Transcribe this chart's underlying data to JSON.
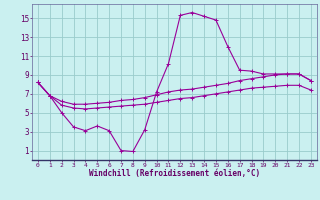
{
  "xlabel": "Windchill (Refroidissement éolien,°C)",
  "bg_color": "#caf0f0",
  "plot_bg_color": "#caf0f0",
  "grid_color": "#99cccc",
  "line_color": "#990099",
  "spine_color": "#666699",
  "tick_color": "#660066",
  "label_color": "#660066",
  "x": [
    0,
    1,
    2,
    3,
    4,
    5,
    6,
    7,
    8,
    9,
    10,
    11,
    12,
    13,
    14,
    15,
    16,
    17,
    18,
    19,
    20,
    21,
    22,
    23
  ],
  "y_main": [
    8.2,
    6.8,
    5.0,
    3.5,
    3.1,
    3.6,
    3.1,
    1.0,
    0.9,
    3.2,
    7.2,
    10.2,
    15.3,
    15.6,
    15.2,
    14.8,
    12.0,
    9.5,
    9.4,
    9.1,
    9.1,
    9.1,
    9.1,
    8.4
  ],
  "y_upper": [
    8.2,
    6.8,
    6.2,
    5.9,
    5.9,
    6.0,
    6.1,
    6.3,
    6.4,
    6.6,
    6.9,
    7.2,
    7.4,
    7.5,
    7.7,
    7.9,
    8.1,
    8.4,
    8.6,
    8.8,
    9.0,
    9.1,
    9.1,
    8.4
  ],
  "y_lower": [
    8.2,
    6.8,
    5.8,
    5.5,
    5.4,
    5.5,
    5.6,
    5.7,
    5.8,
    5.9,
    6.1,
    6.3,
    6.5,
    6.6,
    6.8,
    7.0,
    7.2,
    7.4,
    7.6,
    7.7,
    7.8,
    7.9,
    7.9,
    7.4
  ],
  "xlim": [
    -0.5,
    23.5
  ],
  "ylim": [
    0,
    16.5
  ],
  "yticks": [
    1,
    3,
    5,
    7,
    9,
    11,
    13,
    15
  ],
  "xticks": [
    0,
    1,
    2,
    3,
    4,
    5,
    6,
    7,
    8,
    9,
    10,
    11,
    12,
    13,
    14,
    15,
    16,
    17,
    18,
    19,
    20,
    21,
    22,
    23
  ]
}
